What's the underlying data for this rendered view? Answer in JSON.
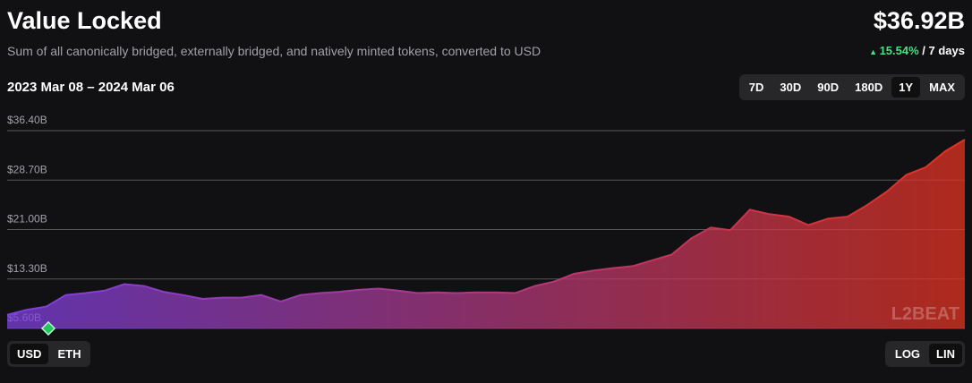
{
  "chart_data": {
    "type": "area",
    "title": "Value Locked",
    "subtitle": "Sum of all canonically bridged, externally bridged, and natively minted tokens, converted to USD",
    "total": "$36.92B",
    "change": "15.54%",
    "change_period": "/ 7 days",
    "date_range": "2023 Mar 08 – 2024 Mar 06",
    "range_buttons": [
      "7D",
      "30D",
      "90D",
      "180D",
      "1Y",
      "MAX"
    ],
    "selected_range": 4,
    "unit_buttons": [
      "USD",
      "ETH"
    ],
    "selected_unit": 0,
    "scale_buttons": [
      "LOG",
      "LIN"
    ],
    "selected_scale": 1,
    "watermark": "L2BEAT",
    "gradient": [
      "#7c3fe0",
      "#e2321f"
    ],
    "grid": true,
    "ylim": [
      5.6,
      36.4
    ],
    "yticks": [
      {
        "value": 5.6,
        "label": "$5.60B"
      },
      {
        "value": 13.3,
        "label": "$13.30B"
      },
      {
        "value": 21.0,
        "label": "$21.00B"
      },
      {
        "value": 28.7,
        "label": "$28.70B"
      },
      {
        "value": 36.4,
        "label": "$36.40B"
      }
    ],
    "values": [
      7.7,
      8.5,
      9.0,
      10.8,
      11.1,
      11.5,
      12.5,
      12.2,
      11.3,
      10.8,
      10.2,
      10.4,
      10.4,
      10.8,
      9.8,
      10.8,
      11.1,
      11.3,
      11.6,
      11.8,
      11.5,
      11.1,
      11.2,
      11.1,
      11.2,
      11.2,
      11.1,
      12.2,
      12.9,
      14.1,
      14.6,
      15.0,
      15.3,
      16.2,
      17.1,
      19.6,
      21.3,
      20.9,
      24.1,
      23.4,
      23.0,
      21.7,
      22.7,
      23.0,
      24.8,
      26.9,
      29.5,
      30.7,
      33.2,
      35.0
    ]
  }
}
